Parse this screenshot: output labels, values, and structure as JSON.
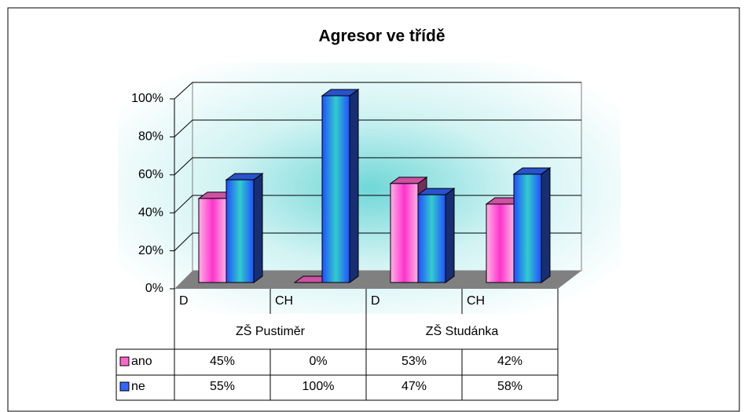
{
  "chart_data": {
    "type": "bar3d",
    "title": "Agresor ve třídě",
    "categories": [
      "D",
      "CH",
      "D",
      "CH"
    ],
    "groups": [
      "ZŠ Pustiměr",
      "ZŠ Studánka"
    ],
    "series": [
      {
        "name": "ano",
        "color": "#ff66cc",
        "values": [
          45,
          0,
          53,
          42
        ],
        "value_labels": [
          "45%",
          "0%",
          "53%",
          "42%"
        ]
      },
      {
        "name": "ne",
        "color": "#3366ff",
        "values": [
          55,
          100,
          47,
          58
        ],
        "value_labels": [
          "55%",
          "100%",
          "47%",
          "58%"
        ]
      }
    ],
    "ylim": [
      0,
      100
    ],
    "yticks": [
      {
        "value": 0,
        "label": "0%"
      },
      {
        "value": 20,
        "label": "20%"
      },
      {
        "value": 40,
        "label": "40%"
      },
      {
        "value": 60,
        "label": "60%"
      },
      {
        "value": 80,
        "label": "80%"
      },
      {
        "value": 100,
        "label": "100%"
      }
    ],
    "grid": true
  }
}
